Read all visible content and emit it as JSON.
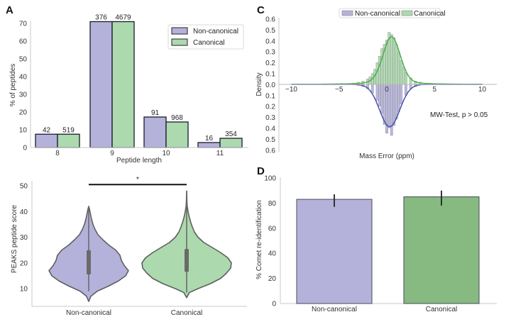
{
  "colors": {
    "non_canonical": "#b4b2da",
    "canonical": "#acd9ae",
    "canonical_dark": "#86ba80",
    "non_canonical_line": "#4a4fb0",
    "canonical_line": "#4cae4c",
    "violin_edge": "#5f5f5f"
  },
  "chart_data": [
    {
      "panel": "A",
      "type": "bar",
      "title": "",
      "xlabel": "Peptide length",
      "ylabel": "% of peptides",
      "ylim": [
        0,
        70
      ],
      "yticks": [
        0,
        10,
        20,
        30,
        40,
        50,
        60,
        70
      ],
      "categories": [
        "8",
        "9",
        "10",
        "11"
      ],
      "legend_position": "top-right",
      "series": [
        {
          "name": "Non-canonical",
          "values": [
            7.5,
            71.0,
            17.2,
            2.8
          ],
          "labels": [
            "42",
            "376",
            "91",
            "16"
          ]
        },
        {
          "name": "Canonical",
          "values": [
            7.5,
            71.0,
            14.4,
            5.2
          ],
          "labels": [
            "519",
            "4679",
            "968",
            "354"
          ]
        }
      ]
    },
    {
      "panel": "B",
      "type": "violin",
      "xlabel": "",
      "ylabel": "PEAKS peptide score",
      "ylim": [
        4,
        52
      ],
      "yticks": [
        10,
        20,
        30,
        40,
        50
      ],
      "categories": [
        "Non-canonical",
        "Canonical"
      ],
      "significance": {
        "label": "*",
        "between": [
          "Non-canonical",
          "Canonical"
        ],
        "y": 50.5
      },
      "series": [
        {
          "name": "Non-canonical",
          "min": 5,
          "whisker_low": 9,
          "q1": 15.5,
          "q3": 25,
          "whisker_high": 42,
          "max": 42,
          "mode": 17
        },
        {
          "name": "Canonical",
          "min": 6.5,
          "whisker_low": 8.5,
          "q1": 16.5,
          "q3": 25.5,
          "whisker_high": 48,
          "max": 48,
          "mode": 19
        }
      ]
    },
    {
      "panel": "C",
      "type": "histogram",
      "xlabel": "Mass Error (ppm)",
      "ylabel": "Density",
      "xlim": [
        -11,
        11
      ],
      "xticks": [
        -10,
        -5,
        0,
        5,
        10
      ],
      "ylim": [
        -0.6,
        0.6
      ],
      "yticks": [
        "0.6",
        "0.5",
        "0.4",
        "0.3",
        "0.2",
        "0.1",
        "0.0",
        "0.1",
        "0.2",
        "0.3",
        "0.4",
        "0.5",
        "0.6"
      ],
      "legend_position": "top-center",
      "annotation": "MW-Test, p > 0.05",
      "series": [
        {
          "name": "Canonical",
          "direction": "up",
          "kde_peak_x": 0.5,
          "kde_peak_density": 0.44,
          "bins_x": [
            -3.5,
            -3,
            -2.5,
            -2,
            -1.75,
            -1.5,
            -1.25,
            -1,
            -0.75,
            -0.5,
            -0.25,
            0,
            0.25,
            0.5,
            0.75,
            1,
            1.25,
            1.5,
            1.75,
            2,
            2.5,
            3,
            3.5,
            4
          ],
          "density": [
            0.01,
            0.02,
            0.03,
            0.05,
            0.07,
            0.1,
            0.14,
            0.2,
            0.26,
            0.33,
            0.37,
            0.41,
            0.48,
            0.46,
            0.43,
            0.37,
            0.3,
            0.22,
            0.16,
            0.11,
            0.06,
            0.03,
            0.02,
            0.01
          ]
        },
        {
          "name": "Non-canonical",
          "direction": "down",
          "kde_peak_x": 0.3,
          "kde_peak_density": 0.39,
          "bins_x": [
            -3,
            -2.5,
            -2,
            -1.5,
            -1,
            -0.75,
            -0.5,
            -0.25,
            0,
            0.25,
            0.5,
            0.75,
            1,
            1.25,
            1.5,
            2,
            2.5,
            3
          ],
          "density": [
            0.01,
            0.02,
            0.04,
            0.08,
            0.15,
            0.2,
            0.27,
            0.37,
            0.45,
            0.4,
            0.47,
            0.38,
            0.32,
            0.25,
            0.18,
            0.1,
            0.04,
            0.02
          ]
        }
      ]
    },
    {
      "panel": "D",
      "type": "bar",
      "xlabel": "",
      "ylabel": "% Comet re-identification",
      "ylim": [
        0,
        100
      ],
      "yticks": [
        0,
        20,
        40,
        60,
        80,
        100
      ],
      "categories": [
        "Non-canonical",
        "Canonical"
      ],
      "values": [
        83,
        85
      ],
      "error_low": [
        77,
        78
      ],
      "error_high": [
        87,
        90
      ]
    }
  ],
  "panels": {
    "A": "A",
    "C": "C",
    "D": "D"
  }
}
